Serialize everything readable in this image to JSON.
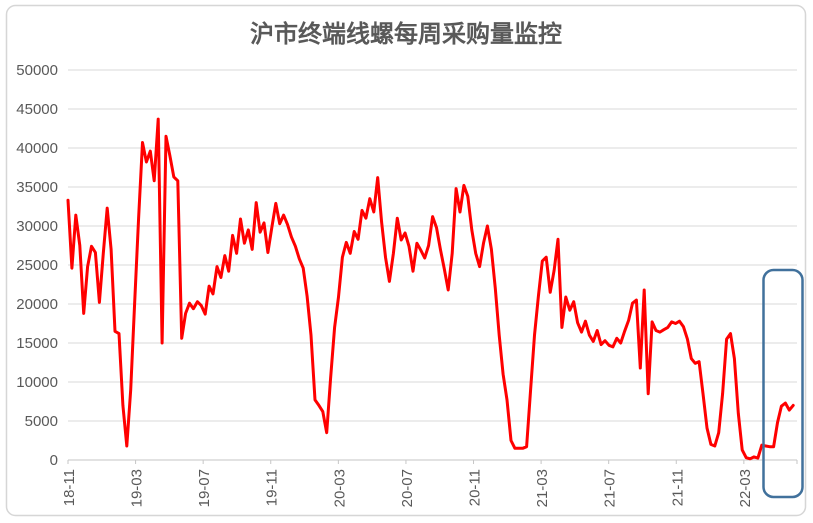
{
  "chart_data": {
    "type": "line",
    "title": "沪市终端线螺每周采购量监控",
    "xlabel": "",
    "ylabel": "",
    "ylim": [
      0,
      50000
    ],
    "grid": true,
    "legend": "none",
    "y_ticks": [
      0,
      5000,
      10000,
      15000,
      20000,
      25000,
      30000,
      35000,
      40000,
      45000,
      50000
    ],
    "x_ticks": [
      {
        "label": "18-11",
        "week": 0
      },
      {
        "label": "19-03",
        "week": 17.24
      },
      {
        "label": "19-07",
        "week": 34.48
      },
      {
        "label": "19-11",
        "week": 51.72
      },
      {
        "label": "20-03",
        "week": 68.97
      },
      {
        "label": "20-07",
        "week": 86.21
      },
      {
        "label": "20-11",
        "week": 103.45
      },
      {
        "label": "21-03",
        "week": 120.69
      },
      {
        "label": "21-07",
        "week": 137.93
      },
      {
        "label": "21-11",
        "week": 155.17
      },
      {
        "label": "22-03",
        "week": 172.41
      }
    ],
    "values": [
      33300,
      24600,
      31400,
      27500,
      18800,
      24800,
      27400,
      26600,
      20200,
      26500,
      32300,
      27000,
      16500,
      16200,
      7000,
      1800,
      9000,
      20000,
      31000,
      40700,
      38200,
      39600,
      35800,
      43700,
      15000,
      41500,
      39000,
      36300,
      35800,
      15600,
      18800,
      20100,
      19400,
      20300,
      19800,
      18700,
      22300,
      21300,
      24800,
      23400,
      26200,
      24200,
      28800,
      26500,
      30900,
      27800,
      29500,
      27000,
      33000,
      29200,
      30400,
      26600,
      29800,
      32900,
      30300,
      31400,
      30200,
      28600,
      27400,
      25800,
      24600,
      21000,
      16000,
      7700,
      7000,
      6200,
      3500,
      10500,
      17000,
      20900,
      26000,
      27900,
      26500,
      29300,
      28300,
      32000,
      31000,
      33500,
      31800,
      36200,
      30500,
      26000,
      22900,
      26500,
      31000,
      28200,
      29100,
      27400,
      24200,
      27800,
      26900,
      25900,
      27500,
      31200,
      29800,
      27000,
      24500,
      21800,
      26500,
      34800,
      31800,
      35200,
      33800,
      29500,
      26500,
      24800,
      27800,
      30000,
      27000,
      22000,
      16000,
      11000,
      7700,
      2500,
      1500,
      1500,
      1500,
      1700,
      9000,
      16000,
      21000,
      25500,
      26000,
      21500,
      24300,
      28300,
      17000,
      20900,
      19200,
      20300,
      17600,
      16400,
      17800,
      16000,
      15200,
      16600,
      14800,
      15300,
      14700,
      14500,
      15600,
      15000,
      16500,
      17900,
      20100,
      20500,
      11800,
      21800,
      8500,
      17700,
      16600,
      16400,
      16700,
      17000,
      17700,
      17500,
      17800,
      17100,
      15500,
      13000,
      12400,
      12600,
      8500,
      4100,
      2000,
      1800,
      3500,
      8500,
      15500,
      16200,
      13000,
      6000,
      1300,
      300,
      150,
      400,
      250,
      1900,
      1800,
      1700,
      1700,
      4800,
      6900,
      7300,
      6400,
      7000
    ],
    "colors": {
      "line": "#FF0000",
      "text": "#595959",
      "grid": "#D9D9D9",
      "axis": "#C6C6C6",
      "frame_border": "#D6D6D6",
      "highlight_box": "#41719C",
      "background": "#FFFFFF"
    },
    "annotations": [
      {
        "name": "highlight-box",
        "shape": "rounded-rect",
        "purpose": "highlights most recent weeks (2022 Shanghai lockdown dip and rebound)"
      }
    ]
  }
}
